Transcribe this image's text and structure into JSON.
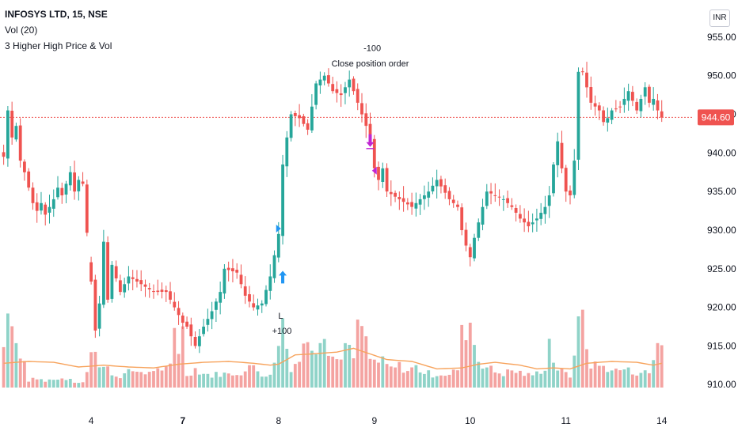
{
  "legend": {
    "title": "INFOSYS LTD, 15, NSE",
    "volume": "Vol (20)",
    "strategy": "3 Higher High Price & Vol"
  },
  "currency_label": "INR",
  "colors": {
    "up": "#26a69a",
    "down": "#ef5350",
    "vol_up": "#8fd3c8",
    "vol_down": "#f4a3a1",
    "vol_ma": "#f7a35c",
    "price_line": "#ef5350",
    "entry_arrow": "#2196f3",
    "exit_arrow": "#c026d3"
  },
  "chart_data": {
    "type": "candlestick",
    "x_tick_labels": [
      {
        "label": "4",
        "bar": 21
      },
      {
        "label": "7",
        "bar": 43
      },
      {
        "label": "8",
        "bar": 66
      },
      {
        "label": "9",
        "bar": 89
      },
      {
        "label": "10",
        "bar": 112
      },
      {
        "label": "11",
        "bar": 135
      },
      {
        "label": "14",
        "bar": 158
      }
    ],
    "y_axis": {
      "min": 909,
      "max": 955.5,
      "ticks": [
        "955.00",
        "950.00",
        "945.00",
        "940.00",
        "935.00",
        "930.00",
        "925.00",
        "920.00",
        "915.00",
        "910.00"
      ]
    },
    "last_price": "944.60",
    "last_price_value": 944.6,
    "annotations": [
      {
        "label": "-100",
        "bar": 88.5,
        "price": 953.2
      },
      {
        "label": "Close position order",
        "bar": 88.0,
        "price": 951.2
      },
      {
        "label": "L",
        "bar": 66.5,
        "price": 918.5
      },
      {
        "label": "+100",
        "bar": 66.8,
        "price": 916.6
      }
    ],
    "markers": [
      {
        "kind": "entry-up-arrow",
        "bar": 67,
        "price": 923.5
      },
      {
        "kind": "entry-flag",
        "bar": 66,
        "price": 930.2
      },
      {
        "kind": "exit-down-arrow",
        "bar": 88,
        "price": 942.0
      },
      {
        "kind": "exit-flag",
        "bar": 89,
        "price": 937.7
      }
    ],
    "close_keys": [
      [
        0,
        939.5
      ],
      [
        1,
        945.5
      ],
      [
        2,
        942.0
      ],
      [
        3,
        943.5
      ],
      [
        4,
        939.0
      ],
      [
        5,
        937.5
      ],
      [
        6,
        935.5
      ],
      [
        7,
        933.5
      ],
      [
        8,
        932.5
      ],
      [
        9,
        933.5
      ],
      [
        10,
        932.0
      ],
      [
        11,
        933.0
      ],
      [
        12,
        934.0
      ],
      [
        13,
        935.5
      ],
      [
        14,
        934.5
      ],
      [
        15,
        936.0
      ],
      [
        16,
        937.5
      ],
      [
        17,
        935.0
      ],
      [
        18,
        936.5
      ],
      [
        19,
        936.0
      ],
      [
        22,
        917.0
      ],
      [
        23,
        920.5
      ],
      [
        24,
        928.5
      ],
      [
        25,
        921.0
      ],
      [
        26,
        925.5
      ],
      [
        28,
        922.0
      ],
      [
        30,
        924.0
      ],
      [
        33,
        923.0
      ],
      [
        36,
        922.0
      ],
      [
        39,
        922.0
      ],
      [
        41,
        920.0
      ],
      [
        43,
        918.0
      ],
      [
        44,
        917.5
      ],
      [
        46,
        915.0
      ],
      [
        48,
        917.5
      ],
      [
        50,
        919.5
      ],
      [
        52,
        922.0
      ],
      [
        53,
        925.0
      ],
      [
        56,
        924.5
      ],
      [
        58,
        921.5
      ],
      [
        60,
        920.0
      ],
      [
        62,
        920.5
      ],
      [
        64,
        924.0
      ],
      [
        66,
        929.5
      ],
      [
        67,
        938.5
      ],
      [
        68,
        942.0
      ],
      [
        69,
        945.0
      ],
      [
        71,
        944.5
      ],
      [
        73,
        943.0
      ],
      [
        75,
        949.0
      ],
      [
        77,
        950.0
      ],
      [
        79,
        948.0
      ],
      [
        81,
        947.5
      ],
      [
        83,
        949.5
      ],
      [
        85,
        946.5
      ],
      [
        86,
        945.0
      ],
      [
        87,
        943.5
      ],
      [
        88,
        941.5
      ],
      [
        89,
        938.0
      ],
      [
        90,
        936.5
      ],
      [
        91,
        938.0
      ],
      [
        92,
        935.0
      ],
      [
        95,
        934.0
      ],
      [
        98,
        933.0
      ],
      [
        100,
        934.0
      ],
      [
        102,
        935.0
      ],
      [
        104,
        936.5
      ],
      [
        107,
        934.0
      ],
      [
        109,
        933.0
      ],
      [
        110,
        930.0
      ],
      [
        111,
        928.0
      ],
      [
        112,
        926.5
      ],
      [
        113,
        929.0
      ],
      [
        114,
        931.0
      ],
      [
        116,
        935.0
      ],
      [
        118,
        934.5
      ],
      [
        120,
        934.0
      ],
      [
        122,
        933.0
      ],
      [
        124,
        931.5
      ],
      [
        126,
        930.5
      ],
      [
        128,
        931.5
      ],
      [
        130,
        933.0
      ],
      [
        131,
        934.5
      ],
      [
        132,
        938.5
      ],
      [
        133,
        941.5
      ],
      [
        134,
        938.0
      ],
      [
        135,
        935.0
      ],
      [
        136,
        934.5
      ],
      [
        137,
        939.0
      ],
      [
        138,
        950.5
      ],
      [
        139,
        950.5
      ],
      [
        140,
        948.5
      ],
      [
        141,
        946.5
      ],
      [
        142,
        946.0
      ],
      [
        143,
        945.5
      ],
      [
        144,
        944.0
      ],
      [
        145,
        944.5
      ],
      [
        146,
        945.5
      ],
      [
        148,
        946.0
      ],
      [
        150,
        948.0
      ],
      [
        152,
        945.5
      ],
      [
        154,
        948.5
      ],
      [
        155,
        946.5
      ],
      [
        156,
        947.0
      ],
      [
        157,
        945.5
      ],
      [
        158,
        944.6
      ]
    ],
    "volume_keys": [
      [
        0,
        0.42
      ],
      [
        1,
        0.91
      ],
      [
        3,
        0.4
      ],
      [
        5,
        0.25
      ],
      [
        6,
        0.08
      ],
      [
        7,
        0.12
      ],
      [
        9,
        0.09
      ],
      [
        11,
        0.07
      ],
      [
        13,
        0.1
      ],
      [
        15,
        0.09
      ],
      [
        17,
        0.06
      ],
      [
        19,
        0.05
      ],
      [
        20,
        0.18
      ],
      [
        21,
        0.48
      ],
      [
        22,
        0.44
      ],
      [
        23,
        0.22
      ],
      [
        25,
        0.2
      ],
      [
        27,
        0.12
      ],
      [
        29,
        0.14
      ],
      [
        31,
        0.18
      ],
      [
        33,
        0.17
      ],
      [
        35,
        0.15
      ],
      [
        36,
        0.2
      ],
      [
        38,
        0.15
      ],
      [
        40,
        0.25
      ],
      [
        41,
        0.7
      ],
      [
        42,
        0.42
      ],
      [
        43,
        0.6
      ],
      [
        44,
        0.14
      ],
      [
        46,
        0.2
      ],
      [
        48,
        0.15
      ],
      [
        50,
        0.13
      ],
      [
        52,
        0.15
      ],
      [
        54,
        0.14
      ],
      [
        56,
        0.16
      ],
      [
        58,
        0.17
      ],
      [
        60,
        0.24
      ],
      [
        62,
        0.15
      ],
      [
        64,
        0.12
      ],
      [
        65,
        0.32
      ],
      [
        66,
        0.42
      ],
      [
        67,
        0.78
      ],
      [
        68,
        0.42
      ],
      [
        69,
        0.22
      ],
      [
        71,
        0.3
      ],
      [
        73,
        0.55
      ],
      [
        75,
        0.45
      ],
      [
        77,
        0.68
      ],
      [
        78,
        0.35
      ],
      [
        80,
        0.3
      ],
      [
        82,
        0.44
      ],
      [
        84,
        0.32
      ],
      [
        85,
        0.61
      ],
      [
        86,
        0.66
      ],
      [
        87,
        0.48
      ],
      [
        88,
        0.3
      ],
      [
        89,
        0.28
      ],
      [
        91,
        0.27
      ],
      [
        93,
        0.2
      ],
      [
        95,
        0.23
      ],
      [
        97,
        0.18
      ],
      [
        99,
        0.22
      ],
      [
        101,
        0.16
      ],
      [
        103,
        0.14
      ],
      [
        105,
        0.15
      ],
      [
        107,
        0.13
      ],
      [
        109,
        0.2
      ],
      [
        110,
        0.56
      ],
      [
        111,
        0.64
      ],
      [
        112,
        0.7
      ],
      [
        113,
        0.48
      ],
      [
        114,
        0.3
      ],
      [
        116,
        0.22
      ],
      [
        118,
        0.17
      ],
      [
        120,
        0.15
      ],
      [
        122,
        0.18
      ],
      [
        124,
        0.16
      ],
      [
        126,
        0.13
      ],
      [
        128,
        0.15
      ],
      [
        130,
        0.22
      ],
      [
        131,
        0.5
      ],
      [
        132,
        0.3
      ],
      [
        133,
        0.2
      ],
      [
        134,
        0.17
      ],
      [
        136,
        0.12
      ],
      [
        137,
        0.42
      ],
      [
        138,
        0.62
      ],
      [
        139,
        0.91
      ],
      [
        140,
        0.4
      ],
      [
        141,
        0.25
      ],
      [
        143,
        0.23
      ],
      [
        145,
        0.21
      ],
      [
        147,
        0.18
      ],
      [
        149,
        0.2
      ],
      [
        151,
        0.16
      ],
      [
        153,
        0.17
      ],
      [
        155,
        0.15
      ],
      [
        156,
        0.3
      ],
      [
        157,
        0.48
      ],
      [
        158,
        0.52
      ]
    ],
    "volume_ma_keys": [
      [
        0,
        0.26
      ],
      [
        6,
        0.28
      ],
      [
        12,
        0.27
      ],
      [
        18,
        0.22
      ],
      [
        24,
        0.24
      ],
      [
        30,
        0.22
      ],
      [
        36,
        0.21
      ],
      [
        42,
        0.25
      ],
      [
        48,
        0.27
      ],
      [
        54,
        0.28
      ],
      [
        60,
        0.26
      ],
      [
        64,
        0.24
      ],
      [
        66,
        0.25
      ],
      [
        70,
        0.35
      ],
      [
        74,
        0.36
      ],
      [
        80,
        0.38
      ],
      [
        84,
        0.42
      ],
      [
        88,
        0.36
      ],
      [
        92,
        0.3
      ],
      [
        98,
        0.28
      ],
      [
        104,
        0.2
      ],
      [
        110,
        0.21
      ],
      [
        114,
        0.25
      ],
      [
        118,
        0.27
      ],
      [
        124,
        0.24
      ],
      [
        128,
        0.2
      ],
      [
        132,
        0.21
      ],
      [
        136,
        0.2
      ],
      [
        140,
        0.26
      ],
      [
        146,
        0.28
      ],
      [
        152,
        0.27
      ],
      [
        156,
        0.24
      ],
      [
        158,
        0.26
      ]
    ],
    "session_gaps": [
      20.5
    ],
    "bar_count": 159
  }
}
